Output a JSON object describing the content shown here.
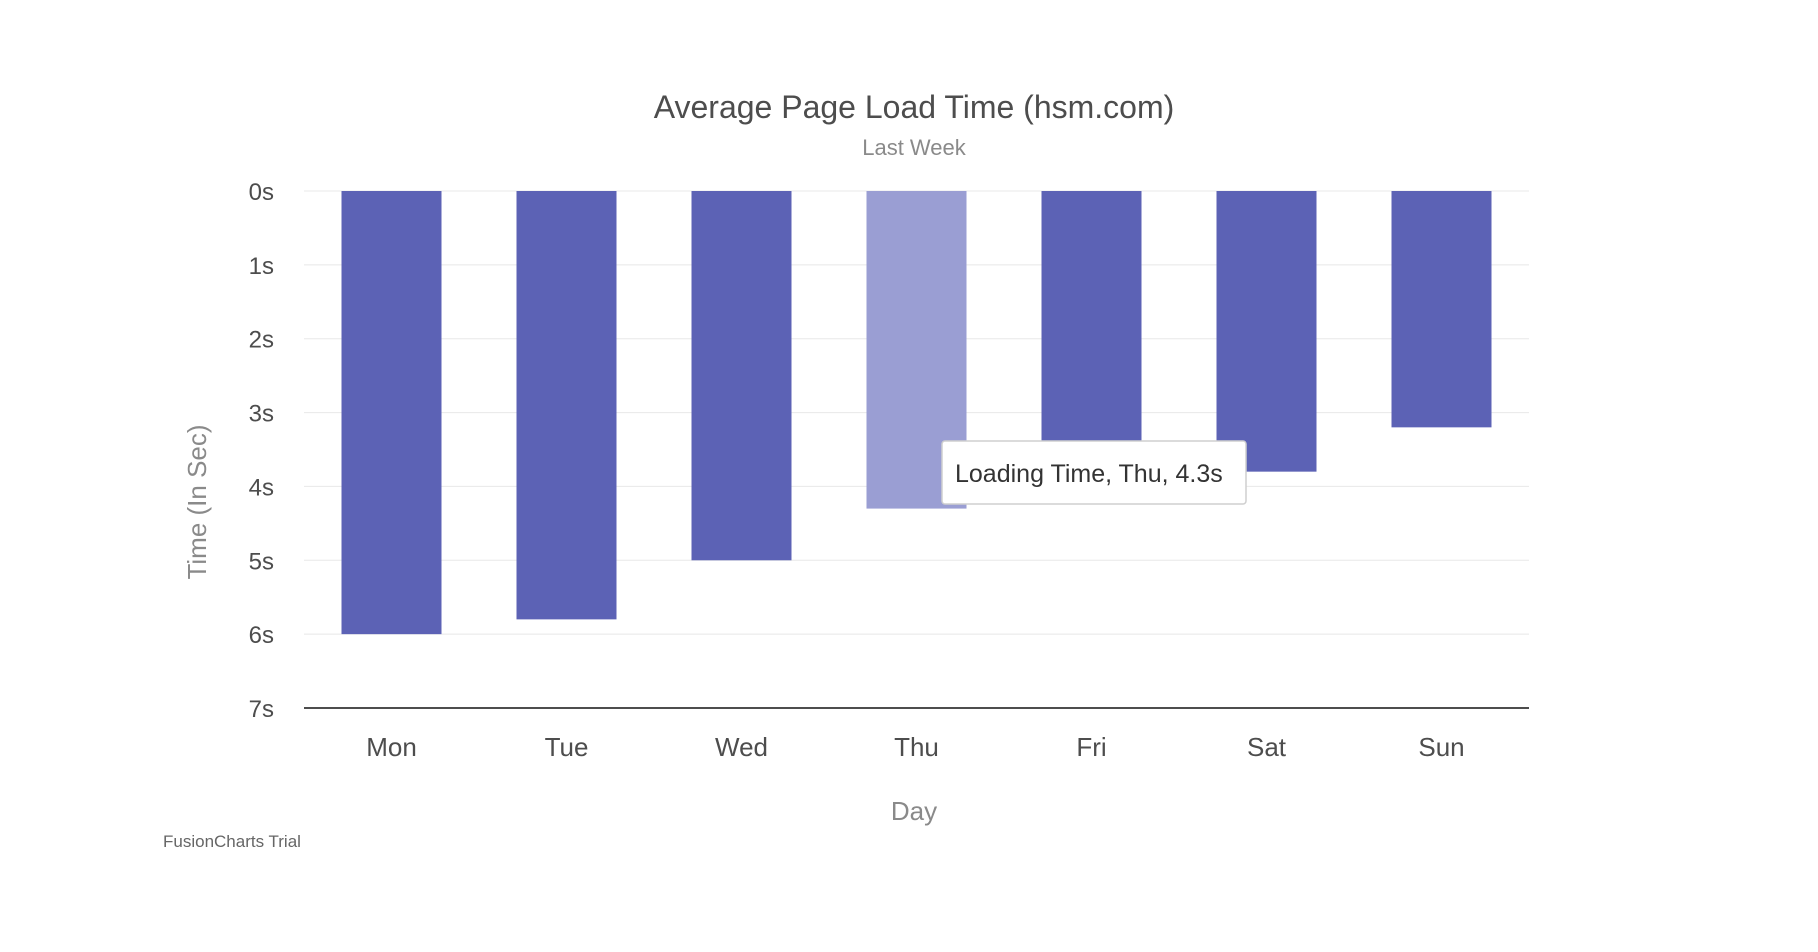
{
  "chart_data": {
    "type": "bar",
    "orientation": "vertical",
    "y_axis_inverted": true,
    "title": "Average Page Load Time (hsm.com)",
    "subtitle": "Last Week",
    "xlabel": "Day",
    "ylabel": "Time (In Sec)",
    "categories": [
      "Mon",
      "Tue",
      "Wed",
      "Thu",
      "Fri",
      "Sat",
      "Sun"
    ],
    "series": [
      {
        "name": "Loading Time",
        "values": [
          6.0,
          5.8,
          5.0,
          4.3,
          3.4,
          3.8,
          3.2
        ]
      }
    ],
    "ylim": [
      0,
      7
    ],
    "yticks": [
      0,
      1,
      2,
      3,
      4,
      5,
      6,
      7
    ],
    "ytick_labels": [
      "0s",
      "1s",
      "2s",
      "3s",
      "4s",
      "5s",
      "6s",
      "7s"
    ],
    "grid": true,
    "highlighted_category": "Thu",
    "colors": {
      "bar": "#5c62b5",
      "bar_highlight": "#9a9ed3",
      "grid": "#e8e8e8",
      "axis": "#4d4d4d"
    }
  },
  "tooltip": {
    "text": "Loading Time, Thu, 4.3s"
  },
  "credit": {
    "text": "FusionCharts Trial"
  }
}
